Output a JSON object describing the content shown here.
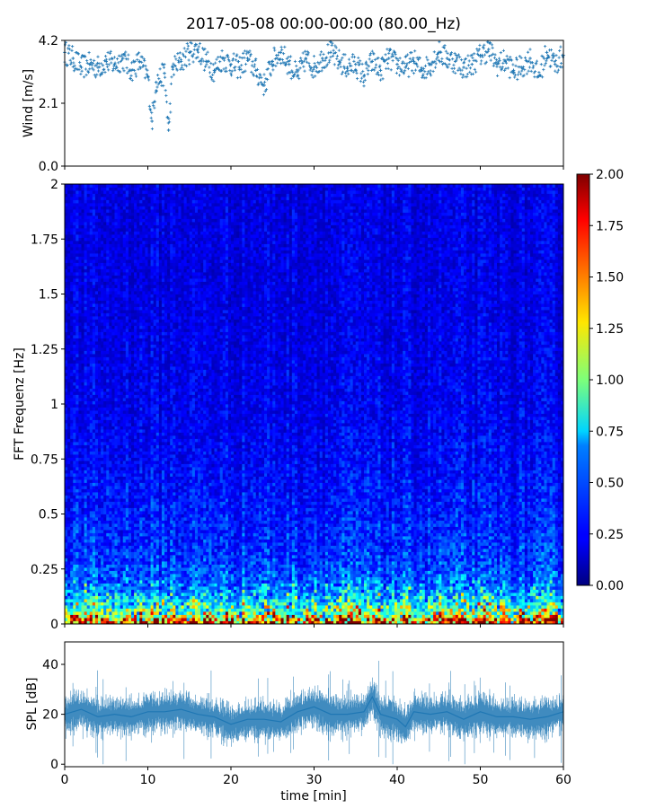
{
  "figure": {
    "title": "2017-05-08 00:00-00:00 (80.00_Hz)"
  },
  "chart_data": [
    {
      "type": "scatter",
      "panel": "wind",
      "ylabel": "Wind [m/s]",
      "xlim": [
        0,
        60
      ],
      "ylim": [
        0,
        4.2
      ],
      "yticks": [
        "0.0",
        "2.1",
        "4.2"
      ],
      "x_ticks_shown": false,
      "marker": "+",
      "color": "#1f77b4",
      "series": [
        {
          "x": [
            0,
            1,
            2,
            3,
            4,
            5,
            6,
            7,
            8,
            9,
            10,
            10.5,
            11,
            12,
            12.5,
            13,
            14,
            15,
            16,
            17,
            18,
            19,
            20,
            21,
            22,
            23,
            24,
            25,
            26,
            27,
            28,
            29,
            30,
            31,
            32,
            33,
            34,
            35,
            36,
            37,
            38,
            39,
            40,
            41,
            42,
            43,
            44,
            45,
            46,
            47,
            48,
            49,
            50,
            51,
            52,
            53,
            54,
            55,
            56,
            57,
            58,
            59,
            60
          ],
          "y": [
            3.8,
            3.6,
            3.3,
            3.4,
            3.3,
            3.5,
            3.4,
            3.6,
            3.2,
            3.5,
            3.0,
            1.5,
            2.8,
            3.1,
            1.2,
            3.3,
            3.5,
            3.8,
            3.9,
            3.5,
            3.2,
            3.6,
            3.4,
            3.3,
            3.6,
            3.2,
            2.7,
            3.5,
            3.8,
            3.4,
            3.0,
            3.6,
            3.3,
            3.6,
            3.8,
            3.5,
            3.3,
            3.4,
            3.0,
            3.5,
            3.2,
            3.6,
            3.4,
            3.3,
            3.5,
            3.2,
            3.4,
            3.8,
            3.6,
            3.5,
            3.3,
            3.4,
            3.7,
            3.9,
            3.4,
            3.5,
            3.2,
            3.3,
            3.6,
            3.0,
            3.8,
            3.4,
            3.7
          ]
        }
      ]
    },
    {
      "type": "heatmap",
      "panel": "spectrogram",
      "ylabel": "FFT Frequenz [Hz]",
      "xlim": [
        0,
        60
      ],
      "ylim": [
        0,
        2
      ],
      "yticks": [
        "0",
        "0.25",
        "0.5",
        "0.75",
        "1",
        "1.25",
        "1.5",
        "1.75",
        "2"
      ],
      "x_ticks_shown": false,
      "colormap": "jet",
      "colorbar": {
        "range": [
          0,
          2
        ],
        "ticks": [
          "0.00",
          "0.25",
          "0.50",
          "0.75",
          "1.00",
          "1.25",
          "1.50",
          "1.75",
          "2.00"
        ]
      },
      "frequency_profile": {
        "freq": [
          0.0,
          0.02,
          0.05,
          0.1,
          0.15,
          0.2,
          0.3,
          0.5,
          0.75,
          1.0,
          1.5,
          2.0
        ],
        "typical_value": [
          1.8,
          1.5,
          1.0,
          0.75,
          0.55,
          0.45,
          0.35,
          0.3,
          0.25,
          0.22,
          0.2,
          0.2
        ]
      }
    },
    {
      "type": "line",
      "panel": "spl",
      "ylabel": "SPL [dB]",
      "xlabel": "time [min]",
      "xlim": [
        0,
        60
      ],
      "ylim": [
        -1,
        49
      ],
      "yticks": [
        "0",
        "20",
        "40"
      ],
      "xticks": [
        "0",
        "10",
        "20",
        "30",
        "40",
        "50",
        "60"
      ],
      "color": "#1f77b4",
      "series": [
        {
          "x": [
            0,
            2,
            4,
            6,
            8,
            10,
            12,
            14,
            16,
            18,
            20,
            22,
            24,
            26,
            28,
            30,
            32,
            34,
            36,
            37,
            38,
            40,
            41,
            42,
            44,
            46,
            48,
            50,
            52,
            54,
            56,
            58,
            60
          ],
          "y": [
            20,
            22,
            19,
            20,
            19,
            21,
            21,
            22,
            20,
            19,
            16,
            18,
            18,
            17,
            21,
            23,
            20,
            20,
            21,
            27,
            20,
            18,
            15,
            21,
            20,
            21,
            18,
            21,
            19,
            19,
            18,
            19,
            21
          ]
        }
      ]
    }
  ]
}
